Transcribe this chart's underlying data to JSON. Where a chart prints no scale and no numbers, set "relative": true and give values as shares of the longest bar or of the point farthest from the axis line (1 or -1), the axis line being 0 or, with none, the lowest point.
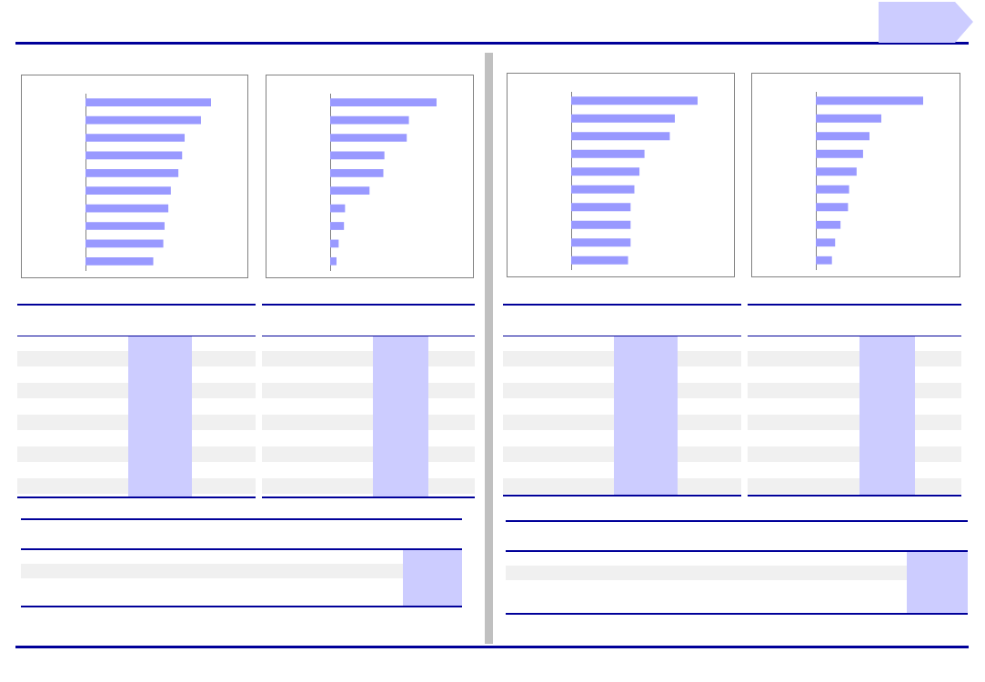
{
  "chart_data": [
    {
      "type": "bar",
      "orientation": "horizontal",
      "relative": true,
      "categories": [
        null,
        null,
        null,
        null,
        null,
        null,
        null,
        null,
        null,
        null
      ],
      "color": "#9999ff",
      "values": [
        1,
        0.92,
        0.79,
        0.77,
        0.74,
        0.68,
        0.66,
        0.63,
        0.62,
        0.54
      ]
    },
    {
      "type": "bar",
      "orientation": "horizontal",
      "relative": true,
      "categories": [
        null,
        null,
        null,
        null,
        null,
        null,
        null,
        null,
        null,
        null
      ],
      "color": "#9999ff",
      "values": [
        1,
        0.74,
        0.72,
        0.51,
        0.5,
        0.37,
        0.14,
        0.13,
        0.08,
        0.06
      ]
    },
    {
      "type": "bar",
      "orientation": "horizontal",
      "relative": true,
      "categories": [
        null,
        null,
        null,
        null,
        null,
        null,
        null,
        null,
        null,
        null
      ],
      "color": "#9999ff",
      "values": [
        1,
        0.82,
        0.78,
        0.58,
        0.54,
        0.5,
        0.47,
        0.47,
        0.47,
        0.45
      ]
    },
    {
      "type": "bar",
      "orientation": "horizontal",
      "relative": true,
      "categories": [
        null,
        null,
        null,
        null,
        null,
        null,
        null,
        null,
        null,
        null
      ],
      "color": "#9999ff",
      "values": [
        1,
        0.61,
        0.5,
        0.44,
        0.38,
        0.31,
        0.3,
        0.23,
        0.18,
        0.15
      ]
    }
  ]
}
